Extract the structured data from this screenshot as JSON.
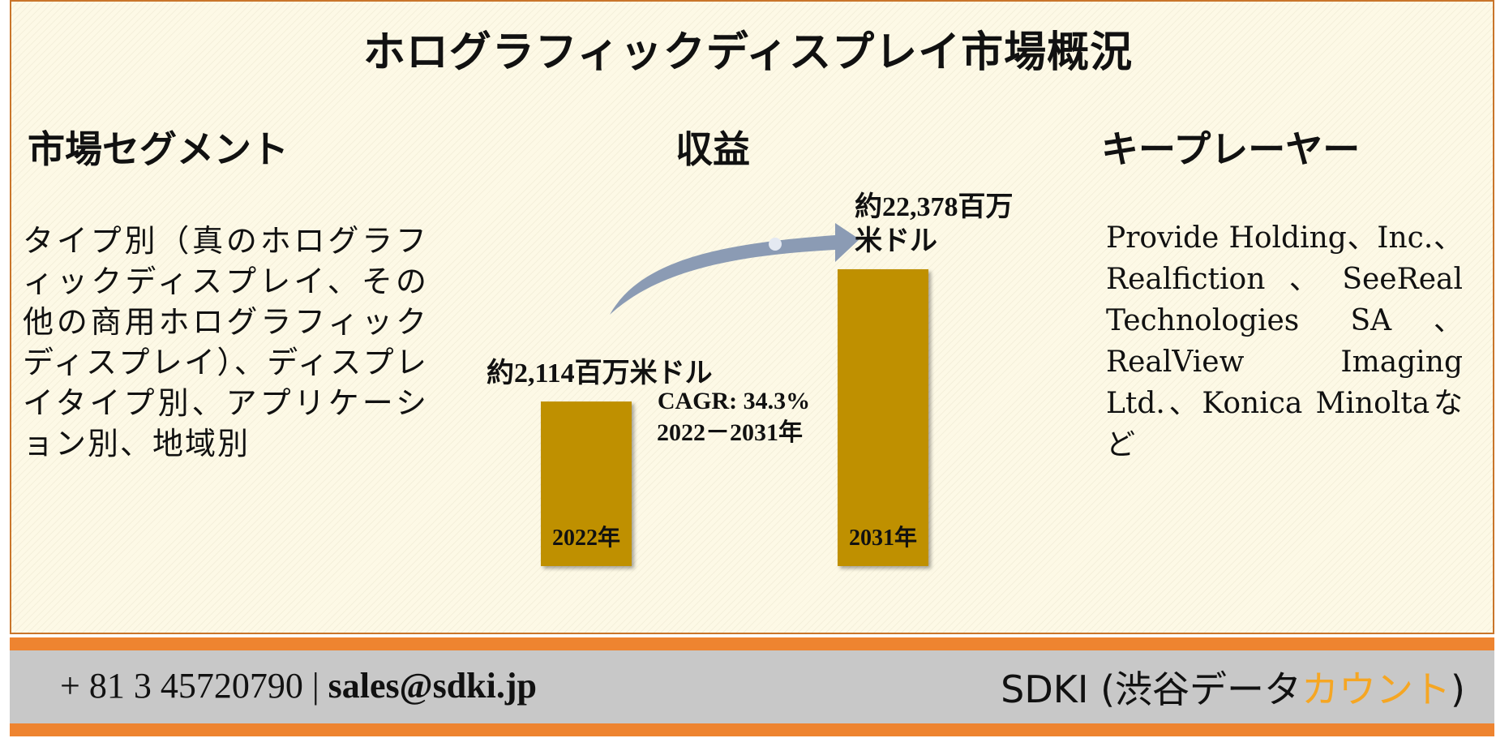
{
  "title": "ホログラフィックディスプレイ市場概況",
  "segments": {
    "heading": "市場セグメント",
    "body": "タイプ別（真のホログラフィックディスプレイ、その他の商用ホログラフィックディスプレイ）、ディスプレイタイプ別、アプリケーション別、地域別"
  },
  "revenue": {
    "heading": "収益",
    "cagr_line1": "CAGR: 34.3%",
    "cagr_line2": "2022－2031年"
  },
  "key_players": {
    "heading": "キープレーヤー",
    "body": "Provide Holding、Inc.、Realfiction、SeeReal Technologies SA、RealView Imaging Ltd.、Konica Minoltaなど"
  },
  "chart_data": {
    "type": "bar",
    "categories": [
      "2022年",
      "2031年"
    ],
    "values": [
      2114,
      22378
    ],
    "value_labels": [
      "約2,114百万米ドル",
      "約22,378百万米ドル"
    ],
    "value_label_lines": [
      [
        "約2,114百万米ドル"
      ],
      [
        "約22,378百万",
        "米ドル"
      ]
    ],
    "bar_color": "#bf9000",
    "arrow_color": "#8b9bb4",
    "title": "",
    "xlabel": "",
    "ylabel": ""
  },
  "footer": {
    "contact_phone": "+ 81 3 45720790",
    "contact_sep": "|",
    "contact_email": "sales@sdki.jp",
    "brand_main": "SDKI (渋谷データ",
    "brand_accent": "カウント",
    "brand_end": ")",
    "strip_color": "#ee8430",
    "accent_color": "#f5a623"
  }
}
